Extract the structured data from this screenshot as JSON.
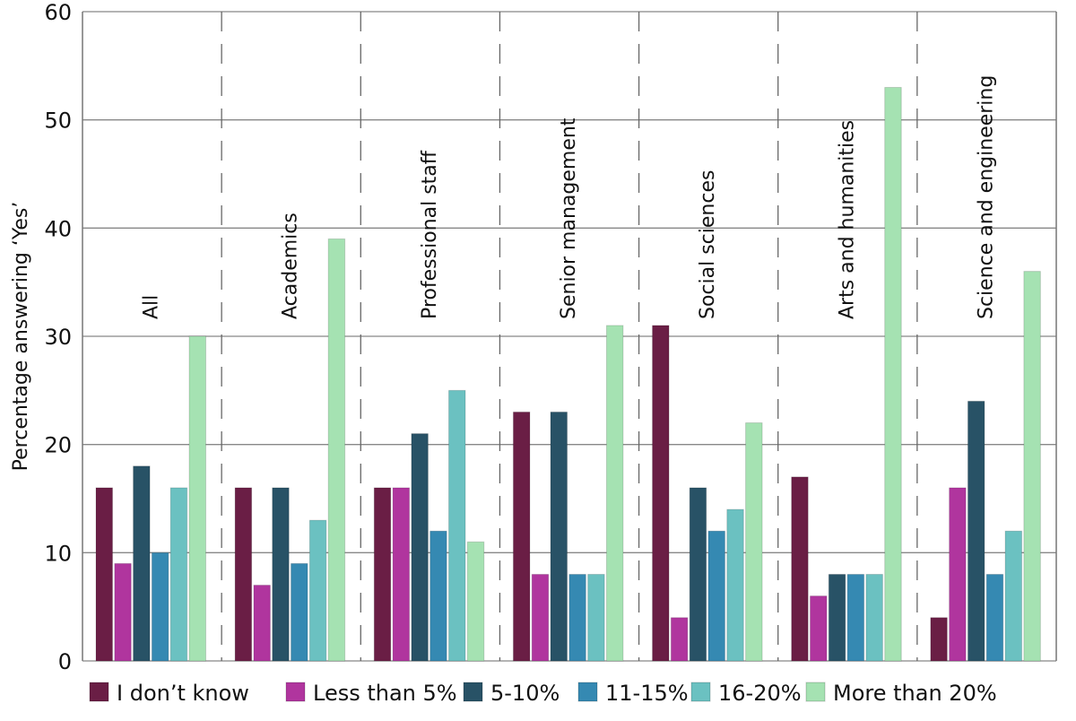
{
  "chart_data": {
    "type": "bar",
    "title": "",
    "xlabel": "",
    "ylabel": "Percentage answering ‘Yes’",
    "ylim": [
      0,
      60
    ],
    "yticks": [
      0,
      10,
      20,
      30,
      40,
      50,
      60
    ],
    "grid": true,
    "legend_position": "bottom",
    "categories": [
      "All",
      "Academics",
      "Professional staff",
      "Senior management",
      "Social sciences",
      "Arts and humanities",
      "Science and engineering"
    ],
    "series": [
      {
        "name": "I don’t know",
        "color": "#6a1e45",
        "values": [
          16,
          16,
          16,
          23,
          31,
          17,
          4
        ]
      },
      {
        "name": "Less than 5%",
        "color": "#b0359e",
        "values": [
          9,
          7,
          16,
          8,
          4,
          6,
          16
        ]
      },
      {
        "name": "5-10%",
        "color": "#285266",
        "values": [
          18,
          16,
          21,
          23,
          16,
          8,
          24
        ]
      },
      {
        "name": "11-15%",
        "color": "#3589b2",
        "values": [
          10,
          9,
          12,
          8,
          12,
          8,
          8
        ]
      },
      {
        "name": "16-20%",
        "color": "#6bc1c1",
        "values": [
          16,
          13,
          25,
          8,
          14,
          8,
          12
        ]
      },
      {
        "name": "More than 20%",
        "color": "#a5e2b2",
        "values": [
          30,
          39,
          11,
          31,
          22,
          53,
          36
        ]
      }
    ]
  }
}
